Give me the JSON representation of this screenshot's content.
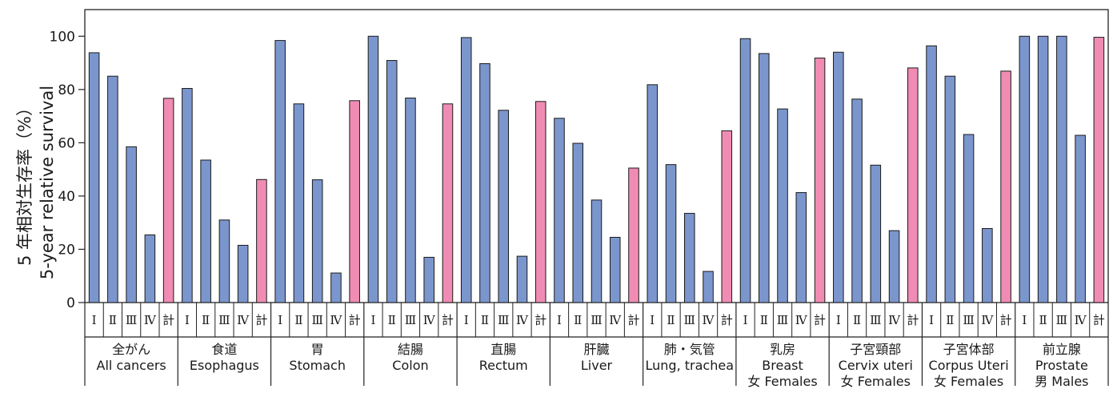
{
  "chart_data": {
    "type": "bar",
    "ylabel": [
      "5 年相対生存率（%）",
      "5-year relative survival"
    ],
    "ylim": [
      0,
      110
    ],
    "yticks": [
      0,
      20,
      40,
      60,
      80,
      100
    ],
    "grid": false,
    "stage_labels": [
      "Ⅰ",
      "Ⅱ",
      "Ⅲ",
      "Ⅳ",
      "計"
    ],
    "colors": {
      "stage": "#7b96cd",
      "total": "#f08cb4"
    },
    "groups": [
      {
        "label": [
          "全がん",
          "All cancers"
        ],
        "values": [
          93.8,
          85.0,
          58.5,
          25.4,
          76.7
        ]
      },
      {
        "label": [
          "食道",
          "Esophagus"
        ],
        "values": [
          80.4,
          53.5,
          31.0,
          21.5,
          46.2
        ]
      },
      {
        "label": [
          "胃",
          "Stomach"
        ],
        "values": [
          98.4,
          74.6,
          46.1,
          11.1,
          75.8
        ]
      },
      {
        "label": [
          "結腸",
          "Colon"
        ],
        "values": [
          100.0,
          90.9,
          76.8,
          17.0,
          74.6
        ]
      },
      {
        "label": [
          "直腸",
          "Rectum"
        ],
        "values": [
          99.5,
          89.7,
          72.2,
          17.4,
          75.5
        ]
      },
      {
        "label": [
          "肝臓",
          "Liver"
        ],
        "values": [
          69.2,
          59.8,
          38.5,
          24.5,
          50.5
        ]
      },
      {
        "label": [
          "肺・気管",
          "Lung, trachea"
        ],
        "values": [
          81.8,
          51.8,
          33.5,
          11.7,
          64.5
        ]
      },
      {
        "label": [
          "乳房",
          "Breast",
          "女 Females"
        ],
        "values": [
          99.1,
          93.5,
          72.7,
          41.3,
          91.8
        ]
      },
      {
        "label": [
          "子宮頸部",
          "Cervix uteri",
          "女 Females"
        ],
        "values": [
          94.0,
          76.4,
          51.6,
          27.0,
          88.1
        ]
      },
      {
        "label": [
          "子宮体部",
          "Corpus Uteri",
          "女 Females"
        ],
        "values": [
          96.4,
          85.0,
          63.1,
          27.8,
          86.9
        ]
      },
      {
        "label": [
          "前立腺",
          "Prostate",
          "男 Males"
        ],
        "values": [
          100.0,
          100.0,
          100.0,
          62.8,
          99.6
        ]
      }
    ]
  }
}
